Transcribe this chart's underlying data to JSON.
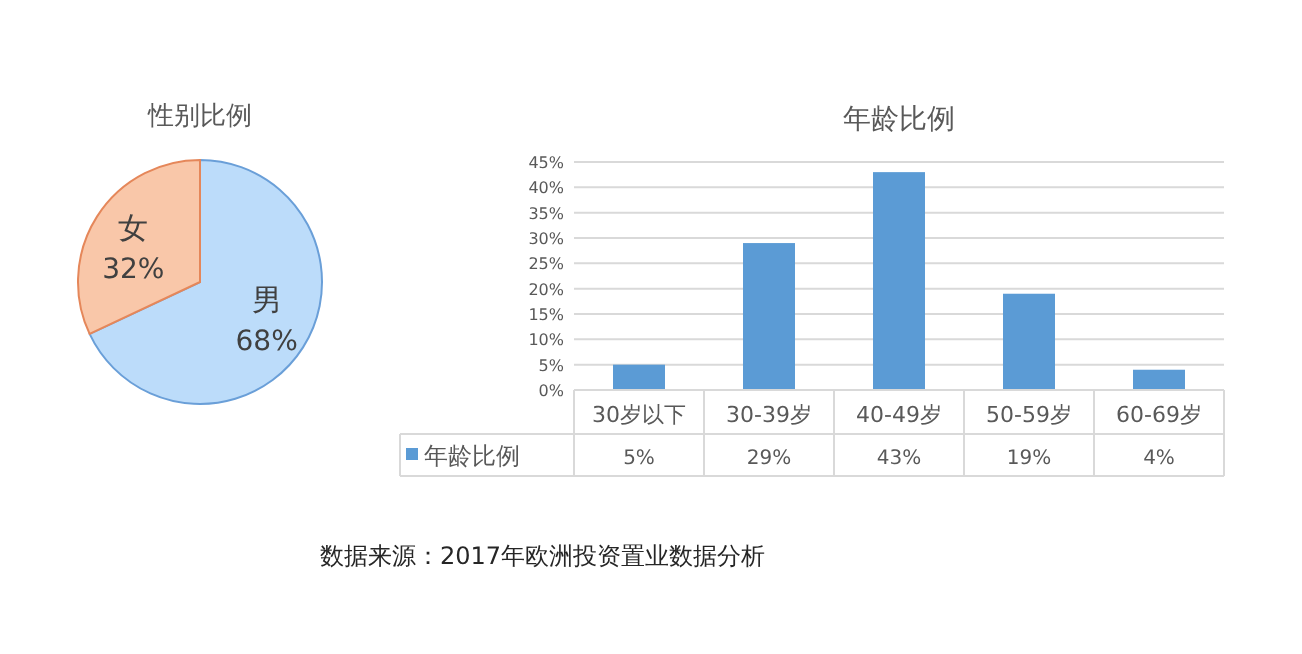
{
  "chart_data": [
    {
      "type": "pie",
      "title": "性别比例",
      "categories": [
        "男",
        "女"
      ],
      "values": [
        68,
        32
      ],
      "colors": [
        "#bcdcfa",
        "#f9c7a9"
      ],
      "value_labels": [
        "68%",
        "32%"
      ]
    },
    {
      "type": "bar",
      "title": "年龄比例",
      "categories": [
        "30岁以下",
        "30-39岁",
        "40-49岁",
        "50-59岁",
        "60-69岁"
      ],
      "series": [
        {
          "name": "年龄比例",
          "color": "#5b9bd5",
          "values": [
            5,
            29,
            43,
            19,
            4
          ],
          "value_labels": [
            "5%",
            "29%",
            "43%",
            "19%",
            "4%"
          ]
        }
      ],
      "ylim": [
        0,
        45
      ],
      "yticks": [
        {
          "value": 0,
          "label": "0%"
        },
        {
          "value": 5,
          "label": "5%"
        },
        {
          "value": 10,
          "label": "10%"
        },
        {
          "value": 15,
          "label": "15%"
        },
        {
          "value": 20,
          "label": "20%"
        },
        {
          "value": 25,
          "label": "25%"
        },
        {
          "value": 30,
          "label": "30%"
        },
        {
          "value": 35,
          "label": "35%"
        },
        {
          "value": 40,
          "label": "40%"
        },
        {
          "value": 45,
          "label": "45%"
        }
      ],
      "grid": "y",
      "annotations": [
        "数据来源：2017年欧洲投资置业数据分析"
      ]
    }
  ]
}
